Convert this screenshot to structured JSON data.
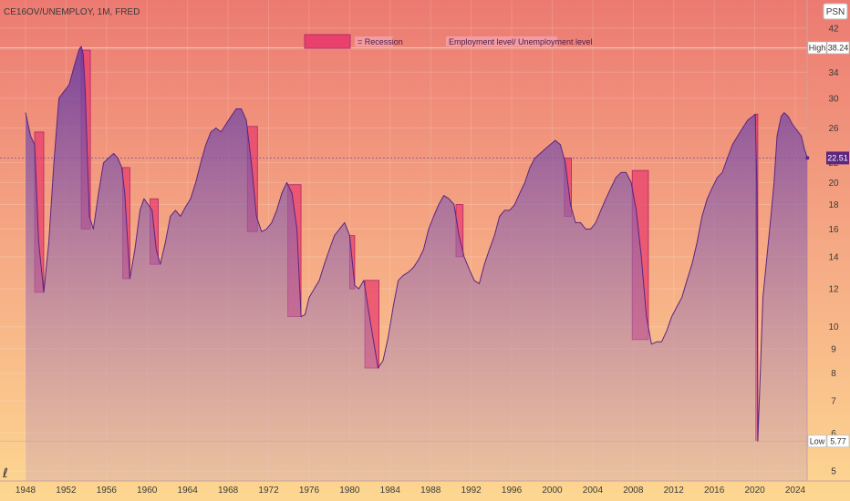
{
  "header": {
    "title": "CE16OV/UNEMPLOY, 1M, FRED",
    "scale_button": "PSN"
  },
  "legend": {
    "recession_label": "= Recession",
    "series_label": "Employment level/ Unemployment level"
  },
  "markers": {
    "high": {
      "label": "High",
      "value": "38.24"
    },
    "low": {
      "label": "Low",
      "value": "5.77"
    },
    "last": {
      "value": "22.51"
    }
  },
  "colors": {
    "bg_top": "#ec7a72",
    "bg_bottom": "#fdd791",
    "series_line": "#5b2580",
    "series_fill": "#7c4aa6",
    "recession_fill": "#e83a6b",
    "recession_stroke": "#b0246a"
  },
  "chart_data": {
    "type": "area",
    "title": "CE16OV/UNEMPLOY, 1M, FRED",
    "xlabel": "",
    "ylabel": "",
    "y_scale": "log",
    "ylim": [
      4.7,
      45
    ],
    "xlim": [
      1947.0,
      2026.0
    ],
    "x_ticks": [
      "1948",
      "1952",
      "1956",
      "1960",
      "1964",
      "1968",
      "1972",
      "1976",
      "1980",
      "1984",
      "1988",
      "1992",
      "1996",
      "2000",
      "2004",
      "2008",
      "2012",
      "2016",
      "2020",
      "2024"
    ],
    "y_ticks": [
      5,
      6,
      7,
      8,
      9,
      10,
      12,
      14,
      16,
      18,
      20,
      22,
      26,
      30,
      34,
      38,
      42
    ],
    "grid": true,
    "series": [
      {
        "name": "Employment level/ Unemployment level",
        "points": [
          [
            1948.0,
            28.0
          ],
          [
            1948.5,
            25.0
          ],
          [
            1948.9,
            24.0
          ],
          [
            1949.3,
            15.0
          ],
          [
            1949.8,
            11.8
          ],
          [
            1950.3,
            15.0
          ],
          [
            1950.8,
            22.0
          ],
          [
            1951.3,
            30.0
          ],
          [
            1951.8,
            31.0
          ],
          [
            1952.3,
            32.0
          ],
          [
            1952.8,
            35.0
          ],
          [
            1953.3,
            38.0
          ],
          [
            1953.5,
            38.5
          ],
          [
            1953.7,
            37.0
          ],
          [
            1953.9,
            31.0
          ],
          [
            1954.3,
            17.0
          ],
          [
            1954.7,
            16.0
          ],
          [
            1955.2,
            19.0
          ],
          [
            1955.7,
            22.0
          ],
          [
            1956.2,
            22.5
          ],
          [
            1956.7,
            23.0
          ],
          [
            1957.1,
            22.5
          ],
          [
            1957.5,
            21.5
          ],
          [
            1957.8,
            19.0
          ],
          [
            1958.3,
            12.6
          ],
          [
            1958.8,
            14.5
          ],
          [
            1959.3,
            17.5
          ],
          [
            1959.7,
            18.5
          ],
          [
            1960.1,
            18.0
          ],
          [
            1960.5,
            17.5
          ],
          [
            1960.9,
            14.5
          ],
          [
            1961.3,
            13.5
          ],
          [
            1961.8,
            15.0
          ],
          [
            1962.3,
            17.0
          ],
          [
            1962.8,
            17.5
          ],
          [
            1963.3,
            17.0
          ],
          [
            1963.8,
            17.8
          ],
          [
            1964.3,
            18.5
          ],
          [
            1964.8,
            20.0
          ],
          [
            1965.3,
            22.0
          ],
          [
            1965.8,
            24.0
          ],
          [
            1966.3,
            25.5
          ],
          [
            1966.8,
            26.0
          ],
          [
            1967.3,
            25.5
          ],
          [
            1967.8,
            26.5
          ],
          [
            1968.3,
            27.5
          ],
          [
            1968.8,
            28.5
          ],
          [
            1969.3,
            28.5
          ],
          [
            1969.8,
            27.0
          ],
          [
            1970.3,
            22.0
          ],
          [
            1970.8,
            17.0
          ],
          [
            1971.3,
            15.8
          ],
          [
            1971.8,
            16.0
          ],
          [
            1972.3,
            16.5
          ],
          [
            1972.8,
            17.5
          ],
          [
            1973.3,
            19.0
          ],
          [
            1973.8,
            20.0
          ],
          [
            1974.3,
            19.0
          ],
          [
            1974.8,
            16.0
          ],
          [
            1975.2,
            10.5
          ],
          [
            1975.6,
            10.6
          ],
          [
            1976.0,
            11.5
          ],
          [
            1976.5,
            12.0
          ],
          [
            1977.0,
            12.5
          ],
          [
            1977.5,
            13.5
          ],
          [
            1978.0,
            14.5
          ],
          [
            1978.5,
            15.5
          ],
          [
            1979.0,
            16.0
          ],
          [
            1979.5,
            16.5
          ],
          [
            1980.0,
            15.5
          ],
          [
            1980.5,
            12.2
          ],
          [
            1980.9,
            12.0
          ],
          [
            1981.4,
            12.5
          ],
          [
            1981.8,
            11.0
          ],
          [
            1982.3,
            9.5
          ],
          [
            1982.8,
            8.2
          ],
          [
            1983.3,
            8.5
          ],
          [
            1983.8,
            9.5
          ],
          [
            1984.3,
            11.0
          ],
          [
            1984.8,
            12.5
          ],
          [
            1985.3,
            12.8
          ],
          [
            1985.8,
            13.0
          ],
          [
            1986.3,
            13.3
          ],
          [
            1986.8,
            13.8
          ],
          [
            1987.3,
            14.5
          ],
          [
            1987.8,
            16.0
          ],
          [
            1988.3,
            17.0
          ],
          [
            1988.8,
            18.0
          ],
          [
            1989.3,
            18.8
          ],
          [
            1989.8,
            18.5
          ],
          [
            1990.3,
            18.0
          ],
          [
            1990.8,
            15.5
          ],
          [
            1991.3,
            14.0
          ],
          [
            1991.8,
            13.2
          ],
          [
            1992.3,
            12.5
          ],
          [
            1992.8,
            12.3
          ],
          [
            1993.3,
            13.5
          ],
          [
            1993.8,
            14.5
          ],
          [
            1994.3,
            15.5
          ],
          [
            1994.8,
            17.0
          ],
          [
            1995.3,
            17.5
          ],
          [
            1995.8,
            17.5
          ],
          [
            1996.3,
            18.0
          ],
          [
            1996.8,
            19.0
          ],
          [
            1997.3,
            20.0
          ],
          [
            1997.8,
            21.5
          ],
          [
            1998.3,
            22.5
          ],
          [
            1998.8,
            23.0
          ],
          [
            1999.3,
            23.5
          ],
          [
            1999.8,
            24.0
          ],
          [
            2000.3,
            24.5
          ],
          [
            2000.8,
            24.0
          ],
          [
            2001.3,
            22.0
          ],
          [
            2001.8,
            18.0
          ],
          [
            2002.3,
            16.5
          ],
          [
            2002.8,
            16.5
          ],
          [
            2003.3,
            16.0
          ],
          [
            2003.8,
            16.0
          ],
          [
            2004.3,
            16.5
          ],
          [
            2004.8,
            17.5
          ],
          [
            2005.3,
            18.5
          ],
          [
            2005.8,
            19.5
          ],
          [
            2006.3,
            20.5
          ],
          [
            2006.8,
            21.0
          ],
          [
            2007.3,
            21.0
          ],
          [
            2007.8,
            20.0
          ],
          [
            2008.3,
            17.5
          ],
          [
            2008.8,
            14.0
          ],
          [
            2009.3,
            10.5
          ],
          [
            2009.8,
            9.2
          ],
          [
            2010.3,
            9.3
          ],
          [
            2010.8,
            9.3
          ],
          [
            2011.3,
            9.8
          ],
          [
            2011.8,
            10.5
          ],
          [
            2012.3,
            11.0
          ],
          [
            2012.8,
            11.5
          ],
          [
            2013.3,
            12.5
          ],
          [
            2013.8,
            13.5
          ],
          [
            2014.3,
            15.0
          ],
          [
            2014.8,
            17.0
          ],
          [
            2015.3,
            18.5
          ],
          [
            2015.8,
            19.5
          ],
          [
            2016.3,
            20.5
          ],
          [
            2016.8,
            21.0
          ],
          [
            2017.3,
            22.5
          ],
          [
            2017.8,
            24.0
          ],
          [
            2018.3,
            25.0
          ],
          [
            2018.8,
            26.0
          ],
          [
            2019.3,
            27.0
          ],
          [
            2019.8,
            27.5
          ],
          [
            2020.05,
            27.8
          ],
          [
            2020.2,
            20.0
          ],
          [
            2020.3,
            5.77
          ],
          [
            2020.5,
            7.5
          ],
          [
            2020.8,
            11.5
          ],
          [
            2021.2,
            14.0
          ],
          [
            2021.6,
            17.0
          ],
          [
            2021.9,
            20.0
          ],
          [
            2022.2,
            25.0
          ],
          [
            2022.6,
            27.5
          ],
          [
            2022.9,
            28.0
          ],
          [
            2023.3,
            27.5
          ],
          [
            2023.7,
            26.5
          ],
          [
            2024.0,
            26.0
          ],
          [
            2024.3,
            25.5
          ],
          [
            2024.6,
            25.0
          ],
          [
            2024.9,
            23.5
          ],
          [
            2025.2,
            22.51
          ]
        ]
      }
    ],
    "recessions": [
      {
        "start": 1948.9,
        "end": 1949.8,
        "top": 25.5,
        "bottom": 11.8
      },
      {
        "start": 1953.5,
        "end": 1954.4,
        "top": 37.8,
        "bottom": 16.0
      },
      {
        "start": 1957.6,
        "end": 1958.3,
        "top": 21.5,
        "bottom": 12.6
      },
      {
        "start": 1960.3,
        "end": 1961.1,
        "top": 18.5,
        "bottom": 13.5
      },
      {
        "start": 1969.9,
        "end": 1970.9,
        "top": 26.2,
        "bottom": 15.8
      },
      {
        "start": 1973.9,
        "end": 1975.2,
        "top": 19.8,
        "bottom": 10.5
      },
      {
        "start": 1980.0,
        "end": 1980.5,
        "top": 15.5,
        "bottom": 12.0
      },
      {
        "start": 1981.5,
        "end": 1982.9,
        "top": 12.5,
        "bottom": 8.2
      },
      {
        "start": 1990.5,
        "end": 1991.2,
        "top": 18.0,
        "bottom": 14.0
      },
      {
        "start": 2001.2,
        "end": 2001.9,
        "top": 22.5,
        "bottom": 17.0
      },
      {
        "start": 2007.9,
        "end": 2009.5,
        "top": 21.2,
        "bottom": 9.4
      },
      {
        "start": 2020.1,
        "end": 2020.3,
        "top": 27.8,
        "bottom": 5.77
      }
    ]
  }
}
